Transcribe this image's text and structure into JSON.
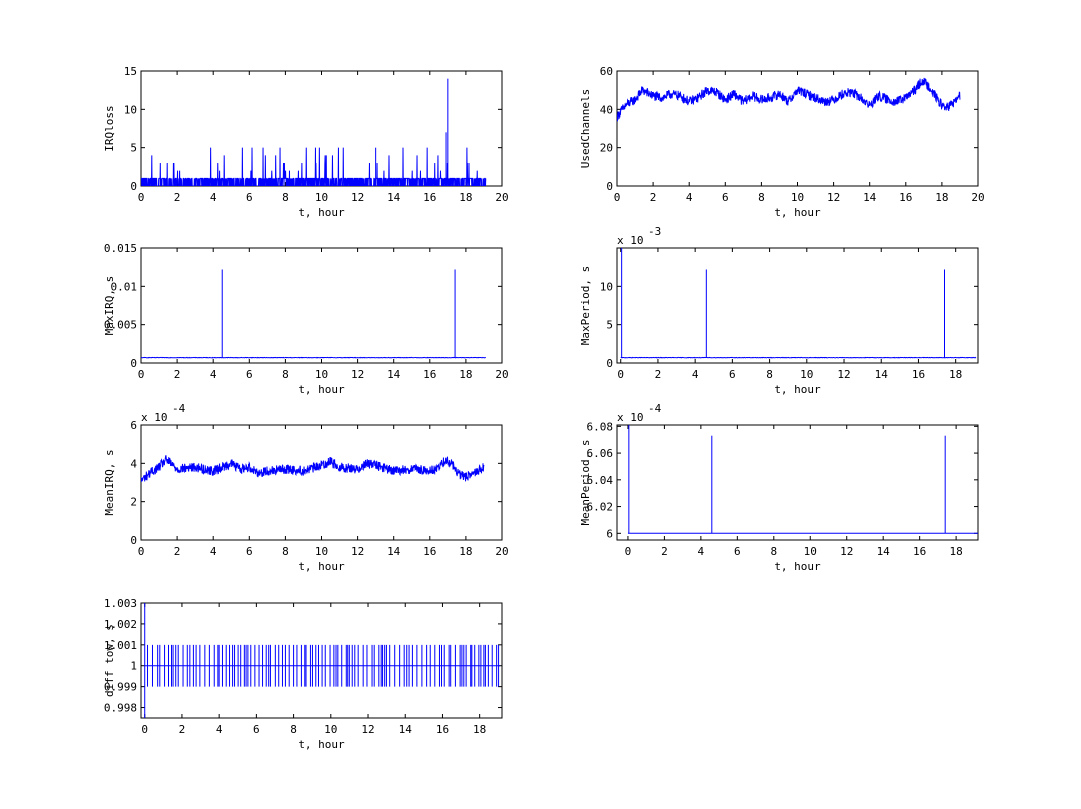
{
  "chart_data": [
    {
      "id": "irqloss",
      "type": "line",
      "xlabel": "t, hour",
      "ylabel": "IRQloss",
      "xlim": [
        0,
        20
      ],
      "ylim": [
        0,
        15
      ],
      "xticks": [
        0,
        2,
        4,
        6,
        8,
        10,
        12,
        14,
        16,
        18,
        20
      ],
      "yticks": [
        0,
        5,
        10,
        15
      ],
      "exponent": "",
      "grid": false,
      "series": [
        {
          "style": "dense-integer-noise",
          "baseline_range": [
            0,
            1
          ],
          "spike_values": [
            2,
            3,
            4,
            5
          ],
          "t_end": 19.1,
          "peaks": [
            {
              "x": 13.0,
              "y": 5
            },
            {
              "x": 16.9,
              "y": 7
            },
            {
              "x": 17.0,
              "y": 14
            }
          ]
        }
      ],
      "color": "#0000ff"
    },
    {
      "id": "usedchannels",
      "type": "line",
      "xlabel": "t, hour",
      "ylabel": "UsedChannels",
      "xlim": [
        0,
        20
      ],
      "ylim": [
        0,
        60
      ],
      "xticks": [
        0,
        2,
        4,
        6,
        8,
        10,
        12,
        14,
        16,
        18,
        20
      ],
      "yticks": [
        0,
        20,
        40,
        60
      ],
      "exponent": "",
      "grid": false,
      "series": [
        {
          "x": [
            0,
            0.3,
            0.6,
            1.0,
            1.4,
            2.0,
            2.5,
            3.0,
            3.5,
            4.0,
            4.5,
            5.0,
            5.5,
            6.0,
            6.5,
            7.0,
            7.5,
            8.0,
            8.5,
            9.0,
            9.5,
            10.0,
            10.5,
            11.0,
            11.5,
            12.0,
            12.5,
            13.0,
            13.5,
            14.0,
            14.5,
            15.0,
            15.5,
            16.0,
            16.5,
            16.9,
            17.3,
            17.7,
            18.0,
            18.3,
            18.6,
            19.0
          ],
          "y": [
            36,
            40,
            43,
            45,
            50,
            47,
            46,
            48,
            47,
            44,
            46,
            50,
            49,
            45,
            48,
            44,
            47,
            45,
            46,
            48,
            44,
            50,
            48,
            46,
            44,
            45,
            48,
            49,
            46,
            42,
            47,
            45,
            44,
            46,
            50,
            55,
            52,
            46,
            42,
            41,
            43,
            47
          ],
          "jitter": 2.5
        }
      ],
      "color": "#0000ff"
    },
    {
      "id": "maxirq",
      "type": "line",
      "xlabel": "t, hour",
      "ylabel": "MaxIRQ, s",
      "xlim": [
        0,
        20
      ],
      "ylim": [
        0,
        0.015
      ],
      "xticks": [
        0,
        2,
        4,
        6,
        8,
        10,
        12,
        14,
        16,
        18,
        20
      ],
      "yticks": [
        0,
        0.005,
        0.01,
        0.015
      ],
      "ytick_labels": [
        "0",
        "0.005",
        "0.01",
        "0.015"
      ],
      "exponent": "",
      "grid": false,
      "series": [
        {
          "baseline": 0.0007,
          "t_end": 19.1,
          "spikes": [
            {
              "x": 4.5,
              "y": 0.0122
            },
            {
              "x": 17.4,
              "y": 0.0122
            }
          ]
        }
      ],
      "color": "#0000ff"
    },
    {
      "id": "maxperiod",
      "type": "line",
      "xlabel": "t, hour",
      "ylabel": "MaxPeriod, s",
      "xlim": [
        -0.2,
        19.2
      ],
      "ylim": [
        0,
        15
      ],
      "xticks": [
        0,
        2,
        4,
        6,
        8,
        10,
        12,
        14,
        16,
        18
      ],
      "yticks": [
        0,
        5,
        10
      ],
      "exponent": "10^-3",
      "grid": false,
      "series": [
        {
          "baseline": 0.7,
          "t_end": 19.1,
          "spikes": [
            {
              "x": 0.05,
              "y": 15
            },
            {
              "x": 4.6,
              "y": 12.2
            },
            {
              "x": 17.4,
              "y": 12.2
            }
          ]
        }
      ],
      "color": "#0000ff"
    },
    {
      "id": "meanirq",
      "type": "line",
      "xlabel": "t, hour",
      "ylabel": "MeanIRQ, s",
      "xlim": [
        0,
        20
      ],
      "ylim": [
        0,
        6
      ],
      "xticks": [
        0,
        2,
        4,
        6,
        8,
        10,
        12,
        14,
        16,
        18,
        20
      ],
      "yticks": [
        0,
        2,
        4,
        6
      ],
      "exponent": "10^-4",
      "grid": false,
      "series": [
        {
          "x": [
            0,
            0.5,
            1.0,
            1.4,
            2.0,
            3.0,
            4.0,
            4.5,
            5.0,
            5.5,
            6.0,
            6.5,
            7.0,
            8.0,
            9.0,
            10.0,
            10.5,
            11.0,
            12.0,
            12.5,
            13.0,
            14.0,
            15.0,
            16.0,
            16.5,
            16.9,
            17.3,
            17.6,
            18.0,
            18.5,
            19.0
          ],
          "y": [
            3.1,
            3.5,
            3.8,
            4.2,
            3.7,
            3.8,
            3.6,
            3.8,
            4.0,
            3.7,
            3.8,
            3.5,
            3.6,
            3.7,
            3.6,
            3.9,
            4.1,
            3.8,
            3.7,
            4.0,
            3.9,
            3.6,
            3.7,
            3.6,
            3.8,
            4.2,
            3.9,
            3.4,
            3.3,
            3.5,
            3.8
          ],
          "jitter": 0.25
        }
      ],
      "color": "#0000ff"
    },
    {
      "id": "meanperiod",
      "type": "line",
      "xlabel": "t, hour",
      "ylabel": "MeanPeriod, s",
      "xlim": [
        -0.6,
        19.2
      ],
      "ylim": [
        5.995,
        6.081
      ],
      "xticks": [
        0,
        2,
        4,
        6,
        8,
        10,
        12,
        14,
        16,
        18
      ],
      "yticks": [
        6,
        6.02,
        6.04,
        6.06,
        6.08
      ],
      "ytick_labels": [
        "6",
        "6.02",
        "6.04",
        "6.06",
        "6.08"
      ],
      "exponent": "10^-4",
      "grid": false,
      "series": [
        {
          "baseline": 6.0,
          "t_end": 19.2,
          "spikes": [
            {
              "x": 0.05,
              "y": 6.081
            },
            {
              "x": 4.6,
              "y": 6.073
            },
            {
              "x": 17.4,
              "y": 6.073
            }
          ]
        }
      ],
      "color": "#0000ff"
    },
    {
      "id": "difftow",
      "type": "line",
      "xlabel": "t, hour",
      "ylabel": "diff tow, s",
      "xlim": [
        -0.2,
        19.2
      ],
      "ylim": [
        0.9975,
        1.003
      ],
      "xticks": [
        0,
        2,
        4,
        6,
        8,
        10,
        12,
        14,
        16,
        18
      ],
      "yticks": [
        0.998,
        0.999,
        1,
        1.001,
        1.002,
        1.003
      ],
      "ytick_labels": [
        "0.998",
        "0.999",
        "1",
        "1.001",
        "1.002",
        "1.003"
      ],
      "exponent": "",
      "grid": false,
      "series": [
        {
          "baseline": 1.0,
          "band": [
            0.999,
            1.001
          ],
          "t_end": 19.1,
          "initial_spike": {
            "x": 0.0,
            "y_low": 0.9975,
            "y_high": 1.003
          }
        }
      ],
      "color": "#0000ff"
    }
  ]
}
